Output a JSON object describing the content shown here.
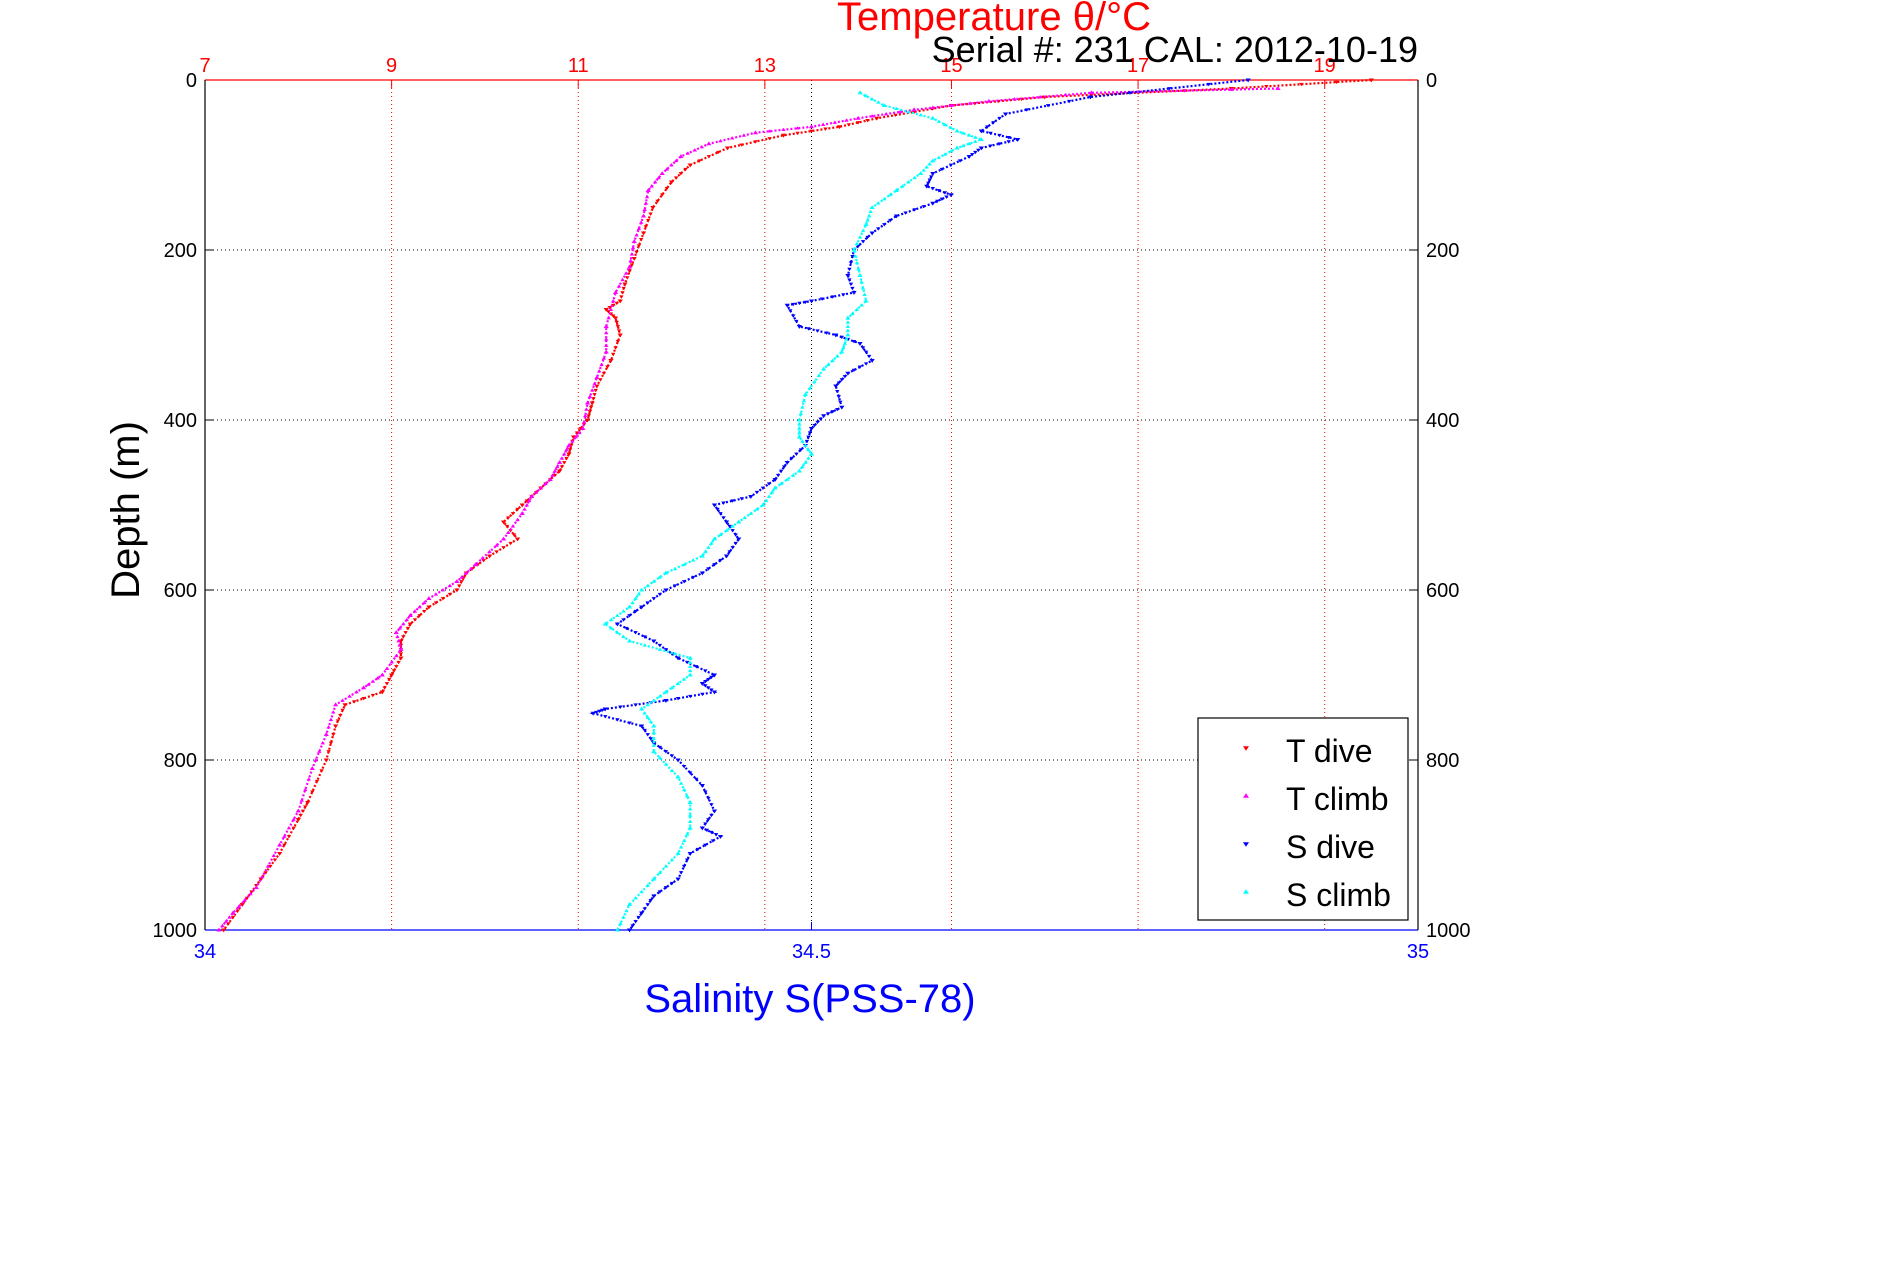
{
  "chart_data": {
    "type": "scatter",
    "title": "Temperature θ/°C",
    "subtitle": "Serial #: 231  CAL: 2012-10-19",
    "ylabel": "Depth (m)",
    "xlabel_bottom": "Salinity S(PSS-78)",
    "ylim": [
      1000,
      0
    ],
    "y_ticks": [
      "0",
      "200",
      "400",
      "600",
      "800",
      "1000"
    ],
    "x_top": {
      "label": "Temperature θ/°C",
      "lim": [
        7,
        20
      ],
      "ticks": [
        "7",
        "9",
        "11",
        "13",
        "15",
        "17",
        "19"
      ],
      "color": "#ff0000"
    },
    "x_bottom": {
      "label": "Salinity S(PSS-78)",
      "lim": [
        34,
        35
      ],
      "ticks": [
        "34",
        "34.5",
        "35"
      ],
      "color": "#0000ff"
    },
    "grid": true,
    "legend_position": "bottom-right",
    "series": [
      {
        "name": "T dive",
        "axis": "temperature",
        "color": "#ff0000",
        "marker": "triangle-down",
        "points": [
          [
            19.5,
            0
          ],
          [
            18.0,
            10
          ],
          [
            16.0,
            20
          ],
          [
            15.0,
            30
          ],
          [
            14.2,
            45
          ],
          [
            13.8,
            55
          ],
          [
            13.2,
            65
          ],
          [
            12.6,
            80
          ],
          [
            12.2,
            100
          ],
          [
            12.0,
            120
          ],
          [
            11.8,
            150
          ],
          [
            11.7,
            180
          ],
          [
            11.6,
            210
          ],
          [
            11.5,
            240
          ],
          [
            11.45,
            260
          ],
          [
            11.3,
            270
          ],
          [
            11.4,
            280
          ],
          [
            11.45,
            300
          ],
          [
            11.35,
            330
          ],
          [
            11.2,
            360
          ],
          [
            11.15,
            380
          ],
          [
            11.1,
            400
          ],
          [
            10.95,
            420
          ],
          [
            10.9,
            440
          ],
          [
            10.8,
            460
          ],
          [
            10.6,
            480
          ],
          [
            10.4,
            500
          ],
          [
            10.2,
            520
          ],
          [
            10.35,
            540
          ],
          [
            10.05,
            560
          ],
          [
            9.8,
            580
          ],
          [
            9.7,
            600
          ],
          [
            9.4,
            620
          ],
          [
            9.2,
            640
          ],
          [
            9.1,
            660
          ],
          [
            9.1,
            680
          ],
          [
            9.0,
            700
          ],
          [
            8.9,
            720
          ],
          [
            8.5,
            735
          ],
          [
            8.4,
            760
          ],
          [
            8.3,
            800
          ],
          [
            8.1,
            850
          ],
          [
            8.0,
            870
          ],
          [
            7.8,
            910
          ],
          [
            7.6,
            940
          ],
          [
            7.4,
            970
          ],
          [
            7.2,
            1000
          ]
        ]
      },
      {
        "name": "T climb",
        "axis": "temperature",
        "color": "#ff00ff",
        "marker": "triangle-up",
        "points": [
          [
            18.5,
            10
          ],
          [
            16.5,
            15
          ],
          [
            15.4,
            25
          ],
          [
            14.6,
            35
          ],
          [
            14.0,
            45
          ],
          [
            13.5,
            55
          ],
          [
            12.9,
            62
          ],
          [
            12.4,
            75
          ],
          [
            12.1,
            90
          ],
          [
            11.9,
            110
          ],
          [
            11.75,
            130
          ],
          [
            11.7,
            160
          ],
          [
            11.6,
            190
          ],
          [
            11.55,
            220
          ],
          [
            11.4,
            250
          ],
          [
            11.3,
            290
          ],
          [
            11.3,
            320
          ],
          [
            11.2,
            350
          ],
          [
            11.1,
            380
          ],
          [
            11.05,
            410
          ],
          [
            10.9,
            430
          ],
          [
            10.8,
            450
          ],
          [
            10.7,
            470
          ],
          [
            10.5,
            490
          ],
          [
            10.4,
            510
          ],
          [
            10.2,
            540
          ],
          [
            9.9,
            570
          ],
          [
            9.7,
            590
          ],
          [
            9.4,
            610
          ],
          [
            9.2,
            630
          ],
          [
            9.05,
            650
          ],
          [
            9.1,
            670
          ],
          [
            8.9,
            700
          ],
          [
            8.7,
            715
          ],
          [
            8.4,
            735
          ],
          [
            8.3,
            770
          ],
          [
            8.15,
            810
          ],
          [
            8.0,
            860
          ],
          [
            7.8,
            900
          ],
          [
            7.55,
            950
          ],
          [
            7.3,
            980
          ],
          [
            7.15,
            1000
          ]
        ]
      },
      {
        "name": "S dive",
        "axis": "salinity",
        "color": "#0000ff",
        "marker": "triangle-down",
        "points": [
          [
            34.86,
            0
          ],
          [
            34.73,
            20
          ],
          [
            34.66,
            40
          ],
          [
            34.64,
            60
          ],
          [
            34.67,
            70
          ],
          [
            34.64,
            80
          ],
          [
            34.63,
            90
          ],
          [
            34.6,
            110
          ],
          [
            34.595,
            125
          ],
          [
            34.615,
            135
          ],
          [
            34.6,
            145
          ],
          [
            34.57,
            160
          ],
          [
            34.55,
            180
          ],
          [
            34.535,
            200
          ],
          [
            34.53,
            230
          ],
          [
            34.535,
            250
          ],
          [
            34.5,
            260
          ],
          [
            34.48,
            265
          ],
          [
            34.49,
            290
          ],
          [
            34.52,
            300
          ],
          [
            34.54,
            310
          ],
          [
            34.55,
            330
          ],
          [
            34.53,
            345
          ],
          [
            34.52,
            360
          ],
          [
            34.525,
            385
          ],
          [
            34.51,
            395
          ],
          [
            34.5,
            410
          ],
          [
            34.495,
            430
          ],
          [
            34.48,
            450
          ],
          [
            34.47,
            470
          ],
          [
            34.45,
            490
          ],
          [
            34.42,
            500
          ],
          [
            34.43,
            520
          ],
          [
            34.44,
            540
          ],
          [
            34.43,
            560
          ],
          [
            34.41,
            580
          ],
          [
            34.38,
            600
          ],
          [
            34.36,
            620
          ],
          [
            34.34,
            640
          ],
          [
            34.37,
            660
          ],
          [
            34.39,
            680
          ],
          [
            34.42,
            700
          ],
          [
            34.41,
            710
          ],
          [
            34.42,
            720
          ],
          [
            34.38,
            730
          ],
          [
            34.33,
            740
          ],
          [
            34.32,
            745
          ],
          [
            34.36,
            760
          ],
          [
            34.37,
            780
          ],
          [
            34.39,
            800
          ],
          [
            34.41,
            830
          ],
          [
            34.42,
            860
          ],
          [
            34.41,
            880
          ],
          [
            34.425,
            890
          ],
          [
            34.4,
            910
          ],
          [
            34.39,
            940
          ],
          [
            34.37,
            960
          ],
          [
            34.36,
            980
          ],
          [
            34.35,
            1000
          ]
        ]
      },
      {
        "name": "S climb",
        "axis": "salinity",
        "color": "#00ffff",
        "marker": "triangle-up",
        "points": [
          [
            34.54,
            15
          ],
          [
            34.56,
            30
          ],
          [
            34.6,
            45
          ],
          [
            34.62,
            60
          ],
          [
            34.64,
            70
          ],
          [
            34.62,
            80
          ],
          [
            34.6,
            95
          ],
          [
            34.59,
            110
          ],
          [
            34.57,
            130
          ],
          [
            34.55,
            150
          ],
          [
            34.545,
            170
          ],
          [
            34.535,
            200
          ],
          [
            34.54,
            230
          ],
          [
            34.545,
            260
          ],
          [
            34.53,
            280
          ],
          [
            34.53,
            300
          ],
          [
            34.525,
            320
          ],
          [
            34.51,
            340
          ],
          [
            34.495,
            370
          ],
          [
            34.49,
            400
          ],
          [
            34.49,
            420
          ],
          [
            34.5,
            440
          ],
          [
            34.49,
            460
          ],
          [
            34.47,
            480
          ],
          [
            34.46,
            500
          ],
          [
            34.44,
            520
          ],
          [
            34.42,
            540
          ],
          [
            34.41,
            560
          ],
          [
            34.38,
            580
          ],
          [
            34.36,
            600
          ],
          [
            34.35,
            620
          ],
          [
            34.33,
            640
          ],
          [
            34.35,
            660
          ],
          [
            34.4,
            680
          ],
          [
            34.4,
            700
          ],
          [
            34.38,
            720
          ],
          [
            34.36,
            740
          ],
          [
            34.37,
            760
          ],
          [
            34.37,
            790
          ],
          [
            34.39,
            820
          ],
          [
            34.4,
            850
          ],
          [
            34.4,
            880
          ],
          [
            34.39,
            910
          ],
          [
            34.37,
            940
          ],
          [
            34.35,
            970
          ],
          [
            34.34,
            1000
          ]
        ]
      }
    ]
  }
}
